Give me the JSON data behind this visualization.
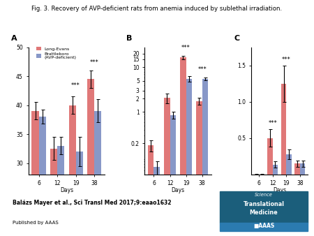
{
  "title": "Fig. 3. Recovery of AVP-deficient rats from anemia induced by sublethal irradiation.",
  "days": [
    "6",
    "12",
    "19",
    "38"
  ],
  "panel_A": {
    "label": "A",
    "le_values": [
      39.0,
      32.5,
      40.0,
      44.5
    ],
    "bb_values": [
      38.0,
      33.0,
      32.0,
      39.0
    ],
    "le_errors": [
      1.5,
      2.0,
      1.5,
      1.5
    ],
    "bb_errors": [
      1.2,
      1.5,
      2.5,
      2.0
    ],
    "ylim": [
      28,
      50
    ],
    "yticks": [
      30,
      35,
      40,
      45,
      50
    ],
    "significance": [
      "",
      "",
      "***",
      "***"
    ]
  },
  "panel_B": {
    "label": "B",
    "le_values": [
      0.18,
      2.05,
      16.5,
      1.75
    ],
    "bb_values": [
      0.06,
      0.85,
      5.5,
      5.5
    ],
    "le_errors": [
      0.05,
      0.5,
      1.5,
      0.3
    ],
    "bb_errors": [
      0.02,
      0.15,
      0.8,
      0.4
    ],
    "yticks": [
      0.2,
      1,
      2,
      3,
      5,
      10,
      15,
      20
    ],
    "ytick_labels": [
      "0.2",
      "1",
      "2",
      "3",
      "5",
      "10",
      "15",
      "20"
    ],
    "ylim": [
      0.04,
      28
    ],
    "significance": [
      "",
      "",
      "***",
      "***"
    ]
  },
  "panel_C": {
    "label": "C",
    "le_values": [
      0.005,
      0.5,
      1.25,
      0.15
    ],
    "bb_values": [
      0.005,
      0.14,
      0.28,
      0.15
    ],
    "le_errors": [
      0.002,
      0.12,
      0.25,
      0.04
    ],
    "bb_errors": [
      0.002,
      0.04,
      0.07,
      0.04
    ],
    "ylim": [
      0,
      1.75
    ],
    "yticks": [
      0.5,
      1.0,
      1.5
    ],
    "ytick_labels": [
      "0.5",
      "1.0",
      "1.5"
    ],
    "significance": [
      "",
      "***",
      "***",
      ""
    ]
  },
  "color_le": "#E07878",
  "color_bb": "#8898C8",
  "legend_labels": [
    "Long-Evans",
    "Brattleboro\n(AVP-deficient)"
  ],
  "citation": "Balázs Mayer et al., Sci Transl Med 2017;9:eaao1632",
  "published_by": "Published by AAAS",
  "logo_bg": "#1B5E7B",
  "logo_bar_bg": "#2B7BB0"
}
